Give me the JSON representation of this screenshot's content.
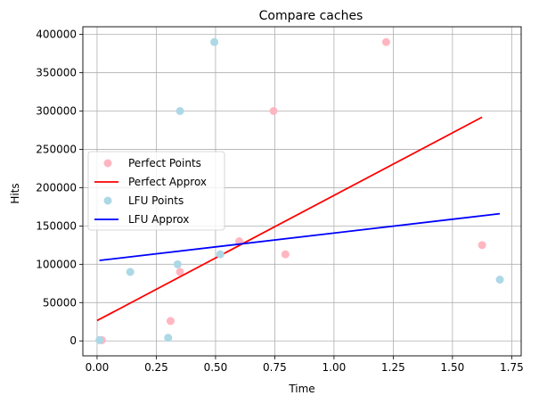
{
  "chart_data": {
    "type": "scatter",
    "title": "Compare caches",
    "xlabel": "Time",
    "ylabel": "Hits",
    "xlim": [
      -0.06,
      1.79
    ],
    "ylim": [
      -19500,
      410000
    ],
    "xticks": [
      0.0,
      0.25,
      0.5,
      0.75,
      1.0,
      1.25,
      1.5,
      1.75
    ],
    "xtick_labels": [
      "0.00",
      "0.25",
      "0.50",
      "0.75",
      "1.00",
      "1.25",
      "1.50",
      "1.75"
    ],
    "yticks": [
      0,
      50000,
      100000,
      150000,
      200000,
      250000,
      300000,
      350000,
      400000
    ],
    "ytick_labels": [
      "0",
      "50000",
      "100000",
      "150000",
      "200000",
      "250000",
      "300000",
      "350000",
      "400000"
    ],
    "grid": true,
    "legend_position": "center-left",
    "series": [
      {
        "name": "Perfect Points",
        "kind": "scatter",
        "color": "#ffb6c1",
        "x": [
          0.02,
          0.31,
          0.35,
          0.6,
          0.745,
          0.795,
          1.22,
          1.625
        ],
        "y": [
          1000,
          26000,
          90000,
          130000,
          300000,
          113000,
          390000,
          125000
        ]
      },
      {
        "name": "Perfect Approx",
        "kind": "line",
        "color": "#ff0000",
        "x": [
          0.0,
          1.625
        ],
        "y": [
          26500,
          292000
        ]
      },
      {
        "name": "LFU Points",
        "kind": "scatter",
        "color": "#add8e6",
        "x": [
          0.01,
          0.14,
          0.3,
          0.34,
          0.35,
          0.495,
          0.52,
          1.7
        ],
        "y": [
          1000,
          90000,
          4000,
          100000,
          300000,
          390000,
          113000,
          80000
        ]
      },
      {
        "name": "LFU Approx",
        "kind": "line",
        "color": "#0000ff",
        "x": [
          0.01,
          1.7
        ],
        "y": [
          105000,
          166000
        ]
      }
    ]
  }
}
